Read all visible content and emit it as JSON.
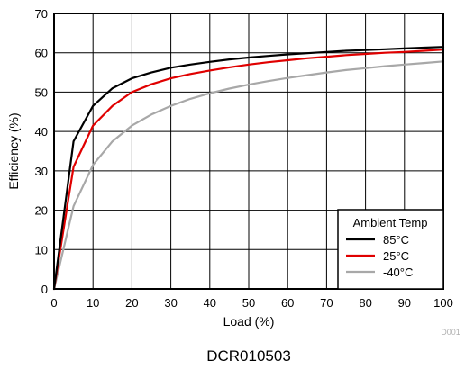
{
  "chart_data": {
    "type": "line",
    "xlabel": "Load (%)",
    "ylabel": "Efficiency (%)",
    "xlim": [
      0,
      100
    ],
    "ylim": [
      0,
      70
    ],
    "xticks": [
      0,
      10,
      20,
      30,
      40,
      50,
      60,
      70,
      80,
      90,
      100
    ],
    "yticks": [
      0,
      10,
      20,
      30,
      40,
      50,
      60,
      70
    ],
    "grid": true,
    "legend": {
      "title": "Ambient Temp",
      "placement": "bottom-right"
    },
    "series": [
      {
        "name": "85°C",
        "color": "#000000",
        "x": [
          0,
          5,
          10,
          15,
          20,
          25,
          30,
          35,
          40,
          45,
          50,
          55,
          60,
          65,
          70,
          75,
          80,
          85,
          90,
          95,
          100
        ],
        "y": [
          0,
          37.5,
          46.5,
          51,
          53.5,
          55,
          56.2,
          57,
          57.7,
          58.3,
          58.8,
          59.2,
          59.6,
          59.9,
          60.2,
          60.5,
          60.7,
          60.9,
          61.1,
          61.3,
          61.5
        ]
      },
      {
        "name": "25°C",
        "color": "#e00000",
        "x": [
          0,
          5,
          10,
          15,
          20,
          25,
          30,
          35,
          40,
          45,
          50,
          55,
          60,
          65,
          70,
          75,
          80,
          85,
          90,
          95,
          100
        ],
        "y": [
          0,
          31,
          41.5,
          46.5,
          50,
          52,
          53.5,
          54.6,
          55.5,
          56.3,
          57,
          57.6,
          58.1,
          58.6,
          59,
          59.4,
          59.7,
          60,
          60.2,
          60.5,
          60.8
        ]
      },
      {
        "name": "-40°C",
        "color": "#a8a8a8",
        "x": [
          0,
          5,
          10,
          15,
          20,
          25,
          30,
          35,
          40,
          45,
          50,
          55,
          60,
          65,
          70,
          75,
          80,
          85,
          90,
          95,
          100
        ],
        "y": [
          0,
          21,
          31.5,
          37.5,
          41.5,
          44.3,
          46.5,
          48.3,
          49.7,
          50.9,
          51.9,
          52.8,
          53.6,
          54.3,
          55,
          55.6,
          56.1,
          56.6,
          57,
          57.4,
          57.8
        ]
      }
    ],
    "note": "D001",
    "caption": "DCR010503"
  }
}
